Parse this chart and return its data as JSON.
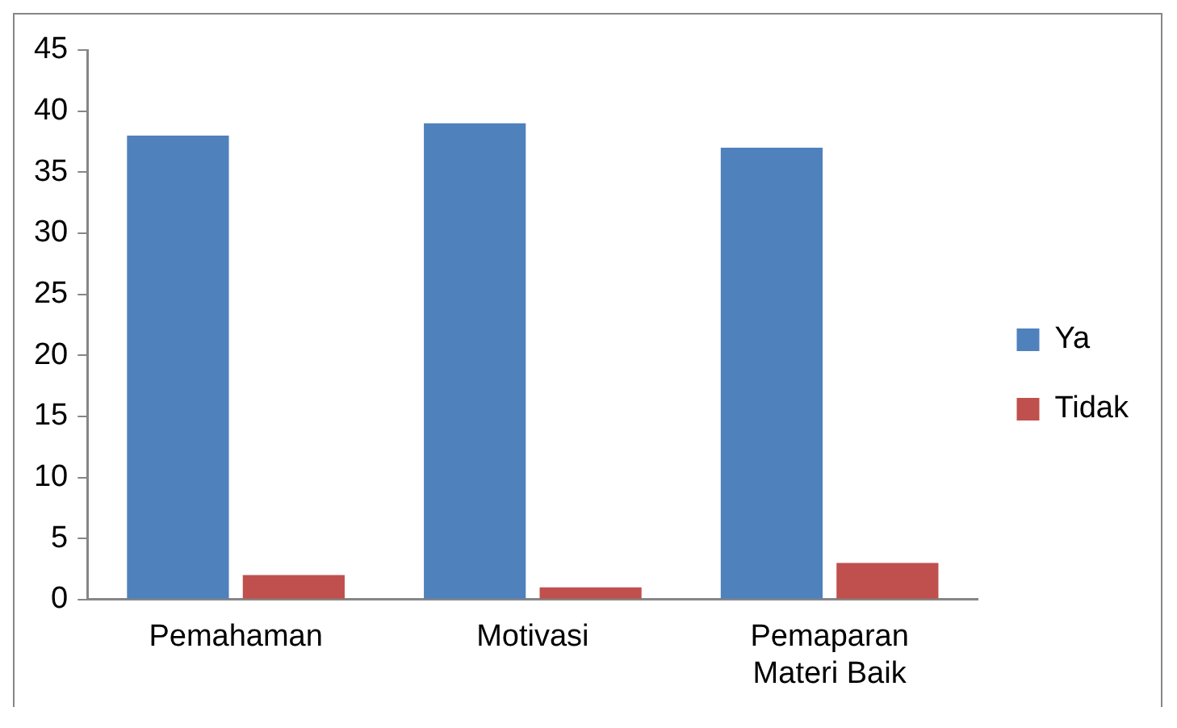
{
  "chart_data": {
    "type": "bar",
    "categories": [
      "Pemahaman",
      "Motivasi",
      "Pemaparan Materi Baik"
    ],
    "series": [
      {
        "name": "Ya",
        "color": "#4f81bd",
        "values": [
          38,
          39,
          37
        ]
      },
      {
        "name": "Tidak",
        "color": "#c0504d",
        "values": [
          2,
          1,
          3
        ]
      }
    ],
    "ylim": [
      0,
      45
    ],
    "yticks": [
      0,
      5,
      10,
      15,
      20,
      25,
      30,
      35,
      40,
      45
    ],
    "grid": false,
    "legend": "right"
  }
}
